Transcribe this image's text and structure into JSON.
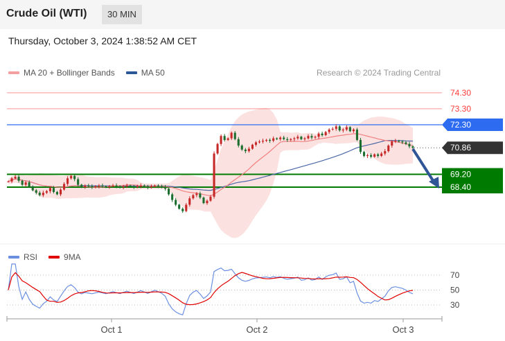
{
  "header": {
    "title": "Crude Oil (WTI)",
    "timeframe": "30 MIN"
  },
  "datetime": "Thursday, October 3, 2024 1:38:52 AM CET",
  "legend": {
    "ma20": "MA 20 + Bollinger Bands",
    "ma50": "MA 50",
    "ma20_color": "#f08080",
    "ma50_color": "#2b5797"
  },
  "credit": "Research © 2024 Trading Central",
  "rsi_legend": {
    "rsi": "RSI",
    "ma9": "9MA",
    "rsi_color": "#6b8fe0",
    "ma9_color": "#e00000"
  },
  "chart_data": [
    {
      "type": "candlestick",
      "title": "Crude Oil (WTI)",
      "ylim": [
        66.0,
        75.0
      ],
      "x_ticks": [
        "Oct 1",
        "Oct 2",
        "Oct 3"
      ],
      "last_price": 70.86,
      "levels": [
        {
          "value": 74.3,
          "label": "74.30",
          "kind": "resistance",
          "color": "#ff3b3b"
        },
        {
          "value": 73.3,
          "label": "73.30",
          "kind": "resistance",
          "color": "#ff3b3b"
        },
        {
          "value": 72.3,
          "label": "72.30",
          "kind": "pivot",
          "color": "#2d6cf0"
        },
        {
          "value": 69.2,
          "label": "69.20",
          "kind": "support",
          "color": "#007a00"
        },
        {
          "value": 68.4,
          "label": "68.40",
          "kind": "support",
          "color": "#007a00"
        }
      ],
      "close": [
        68.75,
        68.95,
        69.05,
        68.8,
        68.55,
        68.7,
        68.45,
        68.2,
        68.05,
        67.9,
        68.05,
        68.15,
        68.35,
        68.1,
        67.95,
        68.25,
        68.6,
        68.95,
        69.1,
        68.9,
        68.55,
        68.4,
        68.5,
        68.45,
        68.4,
        68.45,
        68.5,
        68.45,
        68.4,
        68.45,
        68.5,
        68.45,
        68.4,
        68.45,
        68.5,
        68.45,
        68.4,
        68.45,
        68.5,
        68.45,
        68.4,
        68.45,
        68.5,
        68.45,
        68.4,
        68.3,
        67.95,
        67.6,
        67.3,
        67.05,
        66.9,
        67.3,
        67.7,
        67.9,
        68.0,
        67.75,
        67.4,
        67.55,
        67.8,
        70.5,
        71.1,
        71.6,
        71.35,
        71.45,
        71.8,
        71.4,
        71.0,
        70.75,
        70.65,
        70.8,
        71.05,
        71.2,
        71.25,
        71.3,
        71.35,
        71.3,
        71.45,
        71.4,
        71.5,
        71.4,
        71.35,
        71.4,
        71.45,
        71.55,
        71.4,
        71.45,
        71.6,
        71.5,
        71.55,
        71.75,
        71.65,
        71.85,
        72.0,
        72.05,
        72.2,
        71.95,
        72.0,
        72.15,
        71.9,
        72.0,
        71.35,
        70.6,
        70.35,
        70.4,
        70.3,
        70.45,
        70.35,
        70.5,
        70.65,
        71.0,
        71.25,
        71.3,
        71.25,
        71.2,
        71.1,
        70.95,
        70.86
      ],
      "rsi": {
        "ylim": [
          20,
          80
        ],
        "ticks": [
          70,
          50,
          30
        ]
      }
    }
  ]
}
